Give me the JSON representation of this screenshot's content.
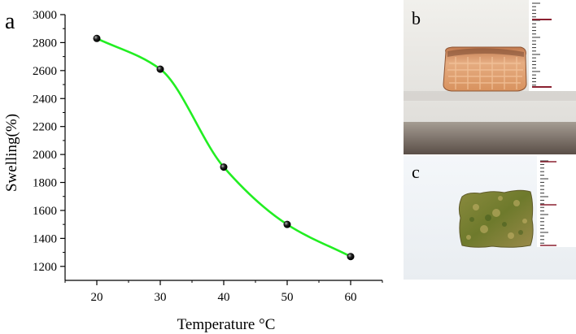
{
  "panels": {
    "a": "a",
    "b": "b",
    "c": "c"
  },
  "chart_data": {
    "type": "line",
    "title": "",
    "xlabel": "Temperature °C",
    "ylabel": "Swelling(%)",
    "x": [
      20,
      30,
      40,
      50,
      60
    ],
    "series": [
      {
        "values": [
          2830,
          2610,
          1910,
          1500,
          1270
        ],
        "color": "#22ee22",
        "marker": "black-sphere"
      }
    ],
    "xlim": [
      15,
      65
    ],
    "ylim": [
      1100,
      3000
    ],
    "xticks": [
      20,
      30,
      40,
      50,
      60
    ],
    "yticks": [
      1200,
      1400,
      1600,
      1800,
      2000,
      2200,
      2400,
      2600,
      2800,
      3000
    ],
    "curve": "smooth",
    "grid": false
  },
  "photos": {
    "b": {
      "subject": "dry-sample-orange",
      "scale": "ruler-right"
    },
    "c": {
      "subject": "swollen-sample-green",
      "scale": "ruler-right"
    }
  }
}
